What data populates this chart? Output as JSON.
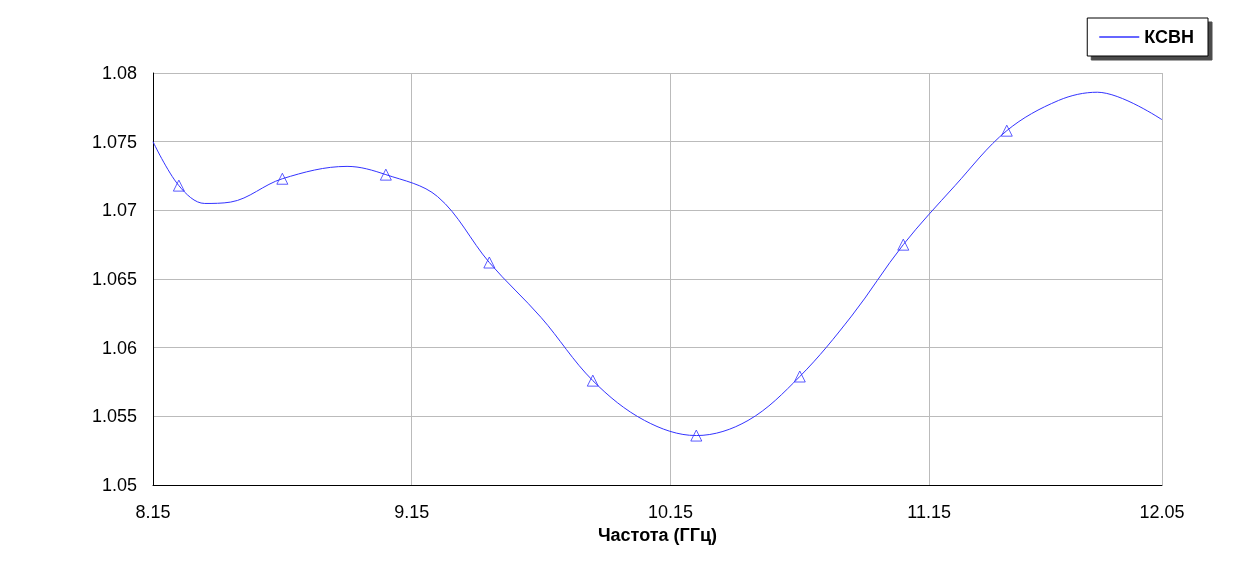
{
  "chart_data": {
    "type": "line",
    "xlabel": "Частота (ГГц)",
    "xlim": [
      8.15,
      12.05
    ],
    "xticks": [
      8.15,
      9.15,
      10.15,
      11.15,
      12.05
    ],
    "ylim": [
      1.05,
      1.08
    ],
    "yticks": [
      1.05,
      1.055,
      1.06,
      1.065,
      1.07,
      1.075,
      1.08
    ],
    "grid": true,
    "legend": "top right",
    "series": [
      {
        "name": "КСВН",
        "marker": "none",
        "color": "#3333ff",
        "x": [
          8.15,
          8.25,
          8.35,
          8.45,
          8.65,
          8.9,
          9.05,
          9.25,
          9.45,
          9.65,
          9.85,
          10.05,
          10.25,
          10.45,
          10.65,
          10.85,
          11.05,
          11.25,
          11.45,
          11.65,
          11.8,
          12.05
        ],
        "values": [
          1.075,
          1.0718,
          1.0705,
          1.0706,
          1.0723,
          1.0732,
          1.0726,
          1.071,
          1.0662,
          1.0622,
          1.0576,
          1.0547,
          1.0536,
          1.0547,
          1.0579,
          1.0623,
          1.0675,
          1.0718,
          1.0758,
          1.078,
          1.0786,
          1.0766
        ]
      },
      {
        "type": "scatter",
        "marker": "triangle",
        "color": "#3333ff",
        "x": [
          8.25,
          8.65,
          9.05,
          9.45,
          9.85,
          10.25,
          10.65,
          11.05,
          11.45
        ],
        "values": [
          1.0718,
          1.0723,
          1.0726,
          1.0662,
          1.0576,
          1.0536,
          1.0579,
          1.0675,
          1.0758
        ]
      }
    ]
  }
}
